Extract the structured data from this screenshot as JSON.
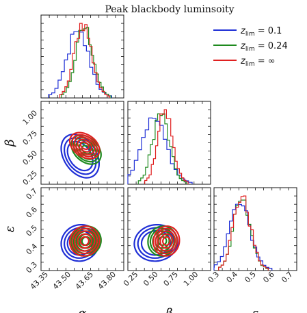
{
  "chart_data": {
    "type": "corner",
    "title": "Peak blackbody luminsoity",
    "parameters": [
      {
        "symbol": "α",
        "range": [
          43.3,
          43.85
        ],
        "ticks": [
          "43.35",
          "43.50",
          "43.65",
          "43.80"
        ],
        "tick_values": [
          43.35,
          43.5,
          43.65,
          43.8
        ]
      },
      {
        "symbol": "β",
        "range": [
          0.12,
          1.15
        ],
        "ticks": [
          "0.25",
          "0.50",
          "0.75",
          "1.00"
        ],
        "tick_values": [
          0.25,
          0.5,
          0.75,
          1.0
        ]
      },
      {
        "symbol": "ε",
        "range": [
          0.27,
          0.72
        ],
        "ticks": [
          "0.3",
          "0.4",
          "0.5",
          "0.6",
          "0.7"
        ],
        "tick_values": [
          0.3,
          0.4,
          0.5,
          0.6,
          0.7
        ]
      }
    ],
    "series": [
      {
        "name": "z_lim = 0.1",
        "label_main": "z",
        "label_sub": "lim",
        "label_value": " = 0.1",
        "color": "#1f2fd6",
        "mean": [
          43.56,
          0.47,
          0.42
        ],
        "std": [
          0.07,
          0.15,
          0.055
        ]
      },
      {
        "name": "z_lim = 0.24",
        "label_main": "z",
        "label_sub": "lim",
        "label_value": " = 0.24",
        "color": "#1e8a1e",
        "mean": [
          43.6,
          0.55,
          0.43
        ],
        "std": [
          0.055,
          0.1,
          0.045
        ]
      },
      {
        "name": "z_lim = ∞",
        "label_main": "z",
        "label_sub": "lim",
        "label_value": " = ∞",
        "color": "#e02020",
        "mean": [
          43.59,
          0.6,
          0.43
        ],
        "std": [
          0.055,
          0.09,
          0.045
        ]
      }
    ],
    "legend_position": "top-right",
    "grid": false
  }
}
